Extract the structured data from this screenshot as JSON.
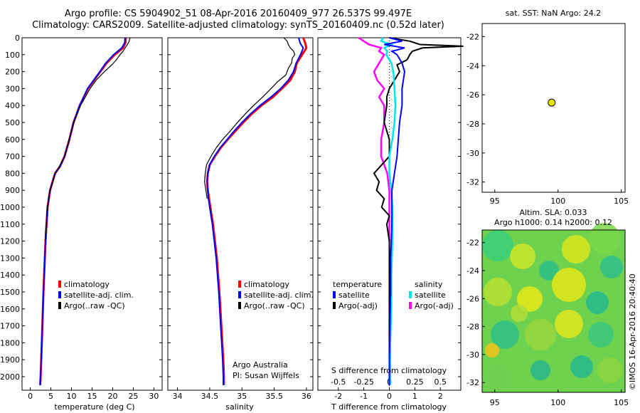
{
  "header": {
    "title_line1": "Argo profile: CS 5904902_51 08-Apr-2016 20160409_977 26.537S 99.497E",
    "title_line2": "Climatology: CARS2009. Satellite-adjusted climatology: synTS_20160409.nc (0.52d later)"
  },
  "colors": {
    "climatology": "#ff0000",
    "satellite": "#0000ff",
    "argo": "#000000",
    "sat_salinity": "#00e5ee",
    "argo_adj_salinity": "#ff00ff"
  },
  "panels": {
    "depth_ticks": [
      "0",
      "100",
      "200",
      "300",
      "400",
      "500",
      "600",
      "700",
      "800",
      "900",
      "1000",
      "1100",
      "1200",
      "1300",
      "1400",
      "1500",
      "1600",
      "1700",
      "1800",
      "1900",
      "2000"
    ],
    "temperature": {
      "xlabel": "temperature (deg C)",
      "ticks": [
        "0",
        "5",
        "10",
        "15",
        "20",
        "25",
        "30"
      ],
      "legend": [
        "climatology",
        "satellite-adj. clim.",
        "Argo(..raw -QC)"
      ]
    },
    "salinity": {
      "xlabel": "salinity",
      "ticks": [
        "34",
        "34.5",
        "35",
        "35.5",
        "36"
      ],
      "legend": [
        "climatology",
        "satellite-adj. clim.",
        "Argo(..raw -QC)"
      ],
      "credit_line1": "Argo Australia",
      "credit_line2": "PI: Susan Wijffels"
    },
    "difference": {
      "xlabel": "T difference from climatology",
      "top_label": "S difference from climatology",
      "t_ticks": [
        "-2",
        "-1",
        "0",
        "1",
        "2"
      ],
      "s_ticks": [
        "-0.5",
        "-0.25",
        "0",
        "0.25",
        "0.5"
      ],
      "legend_temp_title": "temperature",
      "legend_sal_title": "salinity",
      "legend_temp": [
        "satellite",
        "Argo(-adj)"
      ],
      "legend_sal": [
        "satellite",
        "Argo(-adj)"
      ]
    },
    "map_sst": {
      "title": "sat. SST: NaN Argo: 24.2",
      "yticks": [
        "-22",
        "-24",
        "-26",
        "-28",
        "-30",
        "-32"
      ],
      "xticks": [
        "95",
        "100",
        "105"
      ]
    },
    "map_sla": {
      "title_line1": "Altim. SLA: 0.033",
      "title_line2": "Argo h1000: 0.14 h2000: 0.12",
      "yticks": [
        "-22",
        "-24",
        "-26",
        "-28",
        "-30",
        "-32"
      ],
      "xticks": [
        "95",
        "100",
        "105"
      ]
    },
    "credit": "©IMOS 16-Apr-2016 20:40:40"
  },
  "chart_data": [
    {
      "type": "line",
      "title": "",
      "xlabel": "temperature (deg C)",
      "ylabel": "",
      "xlim": [
        -2,
        32
      ],
      "ylim": [
        2080,
        0
      ],
      "series": [
        {
          "name": "climatology",
          "depth": [
            0,
            30,
            60,
            100,
            150,
            200,
            300,
            400,
            500,
            600,
            700,
            760,
            800,
            900,
            1000,
            1200,
            1500,
            1800,
            2000,
            2050
          ],
          "values": [
            23.2,
            23.1,
            22.5,
            20.5,
            18.5,
            17.0,
            14.0,
            12.0,
            10.5,
            9.5,
            8.3,
            7.2,
            6.0,
            4.8,
            4.2,
            3.7,
            3.2,
            2.8,
            2.5,
            2.4
          ]
        },
        {
          "name": "satellite-adj. clim.",
          "depth": [
            0,
            30,
            60,
            100,
            150,
            200,
            300,
            400,
            500,
            600,
            700,
            760,
            800,
            900,
            1000,
            1200,
            1500,
            1800,
            2000,
            2050
          ],
          "values": [
            23.0,
            22.9,
            22.2,
            20.2,
            18.3,
            16.9,
            13.9,
            12.0,
            10.5,
            9.5,
            8.3,
            7.2,
            6.0,
            4.8,
            4.2,
            3.7,
            3.2,
            2.8,
            2.5,
            2.4
          ]
        },
        {
          "name": "Argo(..raw -QC)",
          "depth": [
            0,
            20,
            40,
            60,
            80,
            100,
            130,
            160,
            200,
            250,
            300,
            400,
            500,
            600,
            700,
            800,
            900,
            1000,
            1200
          ],
          "values": [
            24.2,
            24.0,
            23.6,
            23.0,
            22.5,
            21.8,
            20.9,
            19.8,
            18.0,
            16.0,
            14.5,
            12.2,
            10.6,
            9.4,
            8.4,
            6.1,
            4.8,
            4.1,
            3.6
          ]
        }
      ]
    },
    {
      "type": "line",
      "title": "",
      "xlabel": "salinity",
      "ylabel": "",
      "xlim": [
        33.85,
        36.1
      ],
      "ylim": [
        2080,
        0
      ],
      "series": [
        {
          "name": "climatology",
          "depth": [
            0,
            30,
            60,
            90,
            120,
            150,
            200,
            250,
            300,
            350,
            400,
            450,
            500,
            550,
            600,
            650,
            700,
            750,
            800,
            850,
            900,
            950,
            1000,
            1100,
            1200,
            1300,
            1500,
            1700,
            1900,
            2000,
            2050
          ],
          "values": [
            35.95,
            35.98,
            36.0,
            35.95,
            35.9,
            35.85,
            35.82,
            35.75,
            35.62,
            35.48,
            35.3,
            35.15,
            35.02,
            34.9,
            34.78,
            34.67,
            34.58,
            34.5,
            34.47,
            34.46,
            34.47,
            34.49,
            34.51,
            34.55,
            34.58,
            34.61,
            34.65,
            34.68,
            34.71,
            34.72,
            34.72
          ]
        },
        {
          "name": "satellite-adj. clim.",
          "depth": [
            0,
            30,
            60,
            90,
            120,
            150,
            200,
            250,
            300,
            350,
            400,
            450,
            500,
            550,
            600,
            650,
            700,
            750,
            800,
            850,
            900,
            950,
            1000,
            1100,
            1200,
            1300,
            1500,
            1700,
            1900,
            2000,
            2050
          ],
          "values": [
            35.88,
            35.9,
            35.95,
            35.92,
            35.88,
            35.84,
            35.8,
            35.72,
            35.6,
            35.45,
            35.28,
            35.13,
            35.0,
            34.88,
            34.77,
            34.66,
            34.57,
            34.5,
            34.47,
            34.46,
            34.47,
            34.48,
            34.5,
            34.54,
            34.57,
            34.6,
            34.64,
            34.67,
            34.7,
            34.71,
            34.71
          ]
        },
        {
          "name": "Argo(..raw -QC)",
          "depth": [
            0,
            20,
            40,
            60,
            80,
            100,
            120,
            150,
            180,
            220,
            260,
            300,
            350,
            400,
            450,
            500,
            550,
            600,
            650,
            700,
            750,
            800,
            850,
            900,
            950
          ],
          "values": [
            35.65,
            35.7,
            35.72,
            35.75,
            35.8,
            35.82,
            35.78,
            35.77,
            35.72,
            35.68,
            35.55,
            35.45,
            35.32,
            35.18,
            35.05,
            34.93,
            34.82,
            34.7,
            34.6,
            34.52,
            34.45,
            34.43,
            34.42,
            34.44,
            34.46
          ]
        }
      ]
    },
    {
      "type": "line",
      "title": "",
      "xlabel": "T difference from climatology",
      "ylabel": "",
      "xlim": [
        -2.8,
        2.8
      ],
      "ylim": [
        2080,
        0
      ],
      "series": [
        {
          "name": "temperature satellite",
          "depth": [
            0,
            20,
            40,
            60,
            80,
            100,
            150,
            200,
            300,
            400,
            500,
            700,
            900,
            1100,
            1300,
            1500,
            1700,
            1900,
            2050
          ],
          "values": [
            0.0,
            0.5,
            -0.2,
            0.6,
            0.1,
            0.3,
            0.5,
            0.6,
            0.5,
            0.5,
            0.4,
            0.3,
            0.1,
            0.1,
            0.05,
            0.05,
            0.02,
            0.0,
            0.0
          ]
        },
        {
          "name": "temperature Argo(-adj)",
          "depth": [
            0,
            20,
            40,
            50,
            60,
            80,
            100,
            130,
            160,
            200,
            250,
            300,
            350,
            400,
            500,
            600,
            700,
            800,
            850,
            900,
            950,
            1000,
            1050,
            1100,
            1200,
            1400,
            1600,
            1800,
            2050
          ],
          "values": [
            0.0,
            0.8,
            1.2,
            2.9,
            1.3,
            0.9,
            0.8,
            0.7,
            0.3,
            0.4,
            0.2,
            0.0,
            -0.1,
            -0.1,
            -0.2,
            0.0,
            0.0,
            -0.6,
            -0.4,
            -0.5,
            -0.2,
            -0.3,
            0.0,
            -0.1,
            0.0,
            0.0,
            0.0,
            0.0,
            0.0
          ]
        },
        {
          "name": "salinity satellite",
          "depth": [
            0,
            20,
            40,
            60,
            80,
            100,
            150,
            200,
            300,
            400,
            500,
            600,
            700,
            800,
            900,
            1000,
            1200,
            1400,
            1600,
            1800,
            2050
          ],
          "values": [
            -0.06,
            -0.08,
            0.02,
            -0.05,
            -0.02,
            -0.03,
            0.02,
            0.04,
            0.05,
            0.06,
            0.05,
            0.03,
            0.0,
            0.0,
            0.02,
            0.03,
            0.03,
            0.02,
            0.02,
            0.01,
            0.01
          ]
        },
        {
          "name": "salinity Argo(-adj)",
          "depth": [
            0,
            20,
            40,
            60,
            80,
            100,
            150,
            200,
            250,
            300,
            350,
            400,
            500,
            600,
            700,
            800,
            900,
            1000,
            1100,
            1200
          ],
          "values": [
            -0.3,
            -0.25,
            -0.2,
            -0.08,
            -0.1,
            -0.05,
            -0.1,
            -0.15,
            -0.12,
            -0.05,
            -0.1,
            -0.05,
            -0.05,
            -0.08,
            -0.08,
            -0.02,
            0.0,
            0.0,
            0.0,
            0.0
          ]
        }
      ]
    },
    {
      "type": "scatter",
      "title": "sat. SST: NaN Argo: 24.2",
      "xlabel": "",
      "ylabel": "",
      "xlim": [
        94,
        105.3
      ],
      "ylim": [
        -32.7,
        -21.1
      ],
      "series": [
        {
          "name": "",
          "x": [
            99.497
          ],
          "y": [
            -26.537
          ]
        }
      ]
    }
  ]
}
